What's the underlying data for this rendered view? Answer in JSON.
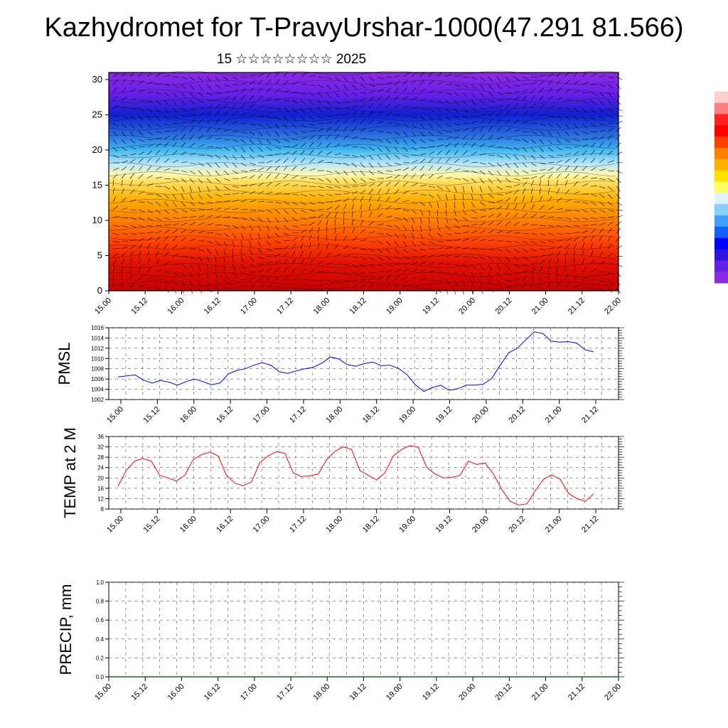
{
  "header": {
    "title": "Kazhydromet for T-PravyUrshar-1000(47.291 81.566)",
    "subtitle": "15 ☆☆☆☆☆☆☆☆ 2025"
  },
  "time_ticks": [
    "15.00",
    "15.12",
    "16.00",
    "16.12",
    "17.00",
    "17.12",
    "18.00",
    "18.12",
    "19.00",
    "19.12",
    "20.00",
    "20.12",
    "21.00",
    "21.12",
    "22.00"
  ],
  "colorbar_colors": [
    "#ffffff",
    "#ff0000",
    "#ffff00",
    "#87cefa",
    "#0000ff",
    "#8a2be2"
  ],
  "chart_data": [
    {
      "type": "heatmap",
      "title": "",
      "xlabel": "",
      "ylabel": "",
      "yticks": [
        "0",
        "5",
        "10",
        "15",
        "20",
        "25",
        "30"
      ],
      "ylim": [
        0,
        31
      ],
      "rows": [
        {
          "y": 0,
          "value": 1.0
        },
        {
          "y": 5,
          "value": 0.95
        },
        {
          "y": 10,
          "value": 0.85
        },
        {
          "y": 14,
          "value": 0.72
        },
        {
          "y": 16,
          "value": 0.6
        },
        {
          "y": 18,
          "value": 0.48
        },
        {
          "y": 21,
          "value": 0.35
        },
        {
          "y": 24,
          "value": 0.2
        },
        {
          "y": 26,
          "value": 0.12
        },
        {
          "y": 29,
          "value": 0.05
        },
        {
          "y": 31,
          "value": 0.0
        }
      ],
      "wind_barbs": true
    },
    {
      "type": "line",
      "ylabel": "PMSL",
      "yticks": [
        "1002",
        "1004",
        "1006",
        "1008",
        "1010",
        "1012",
        "1014",
        "1016"
      ],
      "ylim": [
        1002,
        1016
      ],
      "x_hours_start": 0,
      "x_hours_step": 3,
      "series": [
        {
          "color": "#0000ff",
          "values": [
            1006.4,
            1006.6,
            1006.8,
            1005.8,
            1005.2,
            1005.7,
            1005.4,
            1004.8,
            1005.5,
            1006.0,
            1005.5,
            1004.9,
            1005.2,
            1007.0,
            1007.7,
            1008.0,
            1008.7,
            1009.2,
            1008.7,
            1007.4,
            1007.1,
            1007.6,
            1008.0,
            1008.3,
            1009.1,
            1010.3,
            1009.9,
            1008.8,
            1008.5,
            1009.0,
            1009.3,
            1008.6,
            1008.7,
            1008.1,
            1006.9,
            1004.9,
            1003.6,
            1004.3,
            1004.8,
            1003.8,
            1004.1,
            1004.8,
            1004.8,
            1005.0,
            1006.1,
            1008.7,
            1011.1,
            1012.0,
            1013.6,
            1015.2,
            1014.9,
            1013.4,
            1013.2,
            1013.3,
            1013.0,
            1011.7,
            1011.3
          ]
        }
      ]
    },
    {
      "type": "line",
      "ylabel": "TEMP at 2 M",
      "yticks": [
        "8",
        "12",
        "16",
        "20",
        "24",
        "28",
        "32",
        "36"
      ],
      "ylim": [
        8,
        36
      ],
      "x_hours_start": 0,
      "x_hours_step": 3,
      "series": [
        {
          "color": "#ff0000",
          "values": [
            16.8,
            23.0,
            26.5,
            27.5,
            26.5,
            21.0,
            20.0,
            18.8,
            21.0,
            27.0,
            29.0,
            30.0,
            28.5,
            21.0,
            18.0,
            17.0,
            18.5,
            26.0,
            28.5,
            30.2,
            29.5,
            22.0,
            20.5,
            20.8,
            21.5,
            27.0,
            30.3,
            32.0,
            31.0,
            22.8,
            21.0,
            19.2,
            22.0,
            28.5,
            31.0,
            32.5,
            31.8,
            24.0,
            21.5,
            20.0,
            20.2,
            21.0,
            26.5,
            25.2,
            25.8,
            21.5,
            15.5,
            11.0,
            9.5,
            10.0,
            15.0,
            19.5,
            21.2,
            19.5,
            14.0,
            12.0,
            11.0,
            13.8
          ]
        }
      ]
    },
    {
      "type": "bar",
      "ylabel": "PRECIP, mm",
      "yticks": [
        "0.0",
        "0.2",
        "0.4",
        "0.6",
        "0.8",
        "1.0"
      ],
      "ylim": [
        0,
        1
      ],
      "values": []
    }
  ]
}
